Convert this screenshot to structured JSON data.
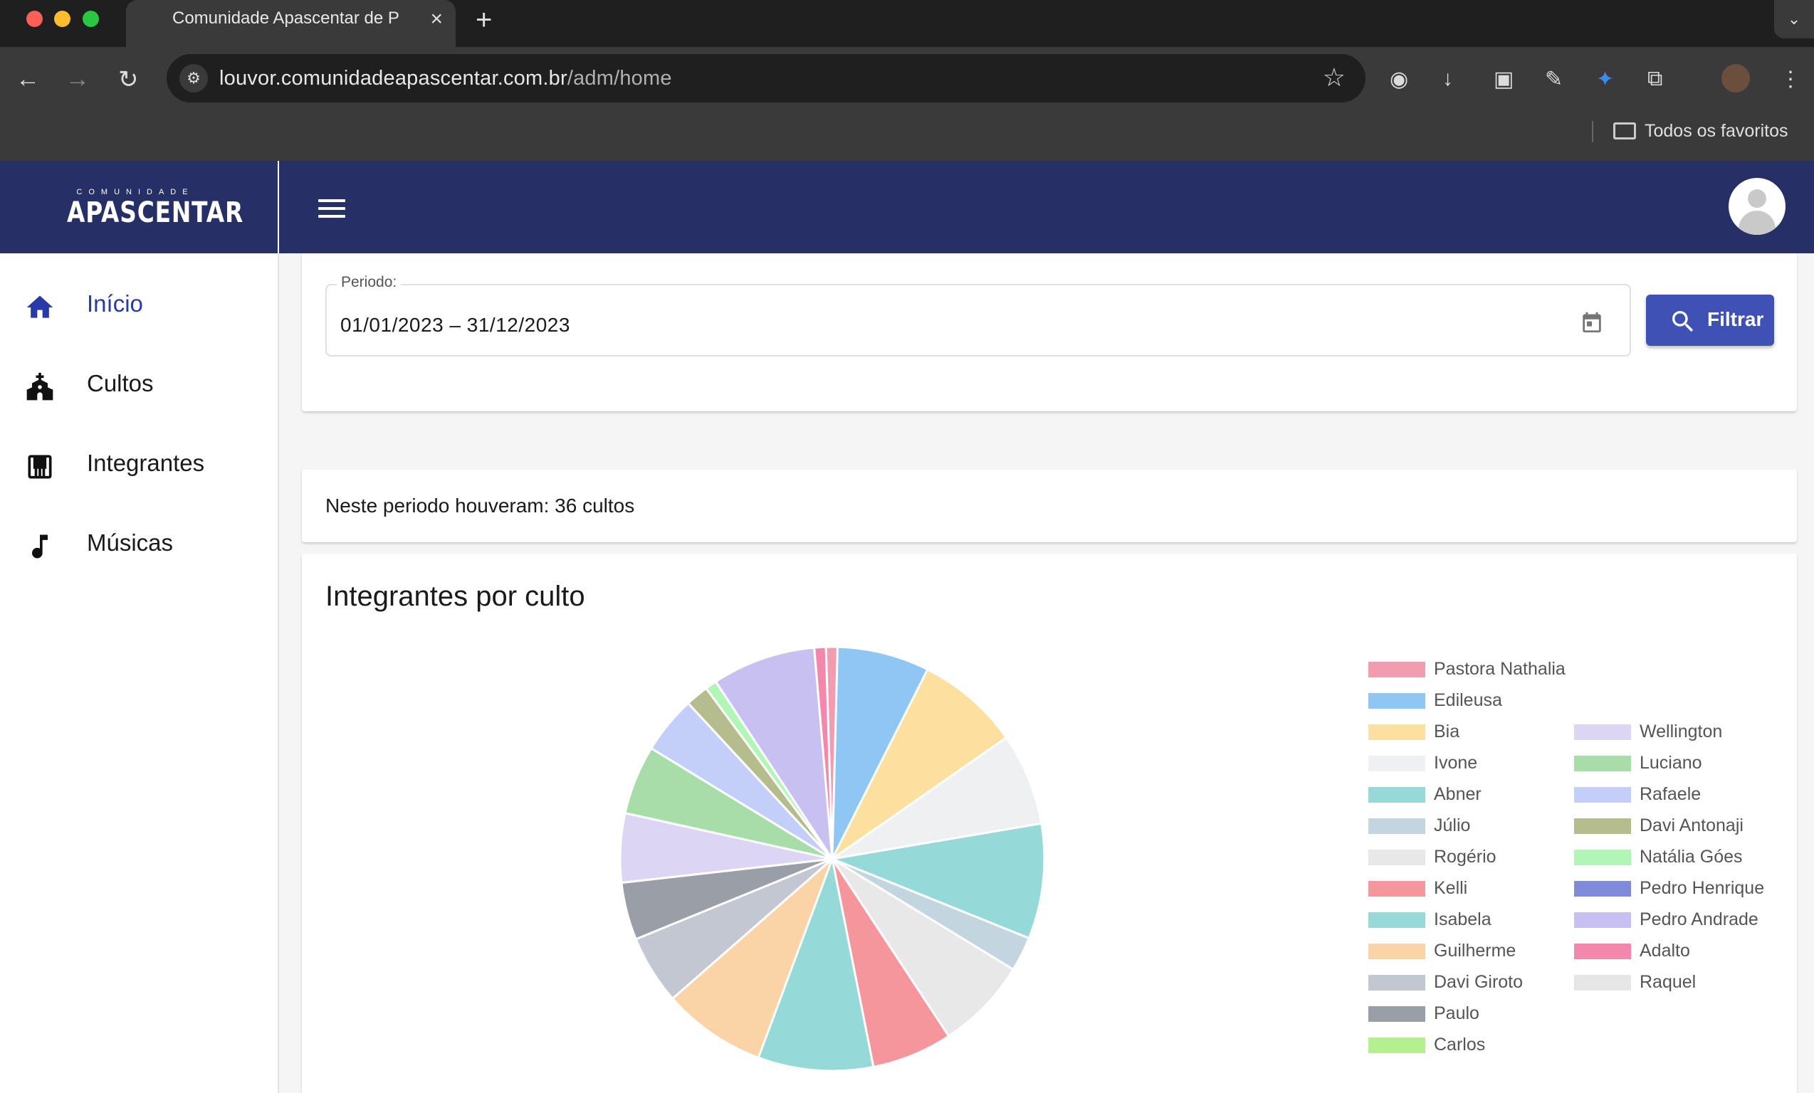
{
  "browser": {
    "tab_title": "Comunidade Apascentar de P",
    "url_host": "louvor.comunidadeapascentar.com.br",
    "url_path": "/adm/home",
    "bookmarks_folder": "Todos os favoritos"
  },
  "header": {
    "logo_small": "COMUNIDADE",
    "logo_main": "APASCENTAR"
  },
  "sidebar": {
    "items": [
      {
        "label": "Início",
        "icon": "home-icon",
        "active": true
      },
      {
        "label": "Cultos",
        "icon": "church-icon",
        "active": false
      },
      {
        "label": "Integrantes",
        "icon": "piano-icon",
        "active": false
      },
      {
        "label": "Músicas",
        "icon": "music-note-icon",
        "active": false
      }
    ]
  },
  "filter": {
    "period_label": "Periodo:",
    "period_value": "01/01/2023 – 31/12/2023",
    "button_label": "Filtrar"
  },
  "summary": {
    "text": "Neste periodo houveram: 36 cultos"
  },
  "chart_data": {
    "type": "pie",
    "title": "Integrantes por culto",
    "legend_position": "right",
    "series": [
      {
        "name": "Pastora Nathalia",
        "value": 1,
        "color": "#f39bb0"
      },
      {
        "name": "Edileusa",
        "value": 8,
        "color": "#8ec7f3"
      },
      {
        "name": "Bia",
        "value": 9,
        "color": "#fde0a0"
      },
      {
        "name": "Ivone",
        "value": 8,
        "color": "#eef0f1"
      },
      {
        "name": "Abner",
        "value": 10,
        "color": "#95d9d8"
      },
      {
        "name": "Júlio",
        "value": 3,
        "color": "#c3d6e0"
      },
      {
        "name": "Rogério",
        "value": 8,
        "color": "#e8e8e8"
      },
      {
        "name": "Kelli",
        "value": 7,
        "color": "#f4969b"
      },
      {
        "name": "Isabela",
        "value": 10,
        "color": "#95d9d8"
      },
      {
        "name": "Guilherme",
        "value": 9,
        "color": "#fad3a6"
      },
      {
        "name": "Davi Giroto",
        "value": 6,
        "color": "#c3c7d2"
      },
      {
        "name": "Paulo",
        "value": 5,
        "color": "#9a9ea6"
      },
      {
        "name": "Carlos",
        "value": 0,
        "color": "#b4f08c"
      },
      {
        "name": "Wellington",
        "value": 6,
        "color": "#dcd5f4"
      },
      {
        "name": "Luciano",
        "value": 6,
        "color": "#a6dda8"
      },
      {
        "name": "Rafaele",
        "value": 5,
        "color": "#c3cef9"
      },
      {
        "name": "Davi Antonaji",
        "value": 2,
        "color": "#b6bd8d"
      },
      {
        "name": "Natália Góes",
        "value": 1,
        "color": "#b1f6b6"
      },
      {
        "name": "Pedro Henrique",
        "value": 0,
        "color": "#7f8bd8"
      },
      {
        "name": "Pedro Andrade",
        "value": 9,
        "color": "#c8c0f0"
      },
      {
        "name": "Adalto",
        "value": 1,
        "color": "#f487ac"
      },
      {
        "name": "Raquel",
        "value": 0,
        "color": "#e6e6e6"
      }
    ]
  }
}
